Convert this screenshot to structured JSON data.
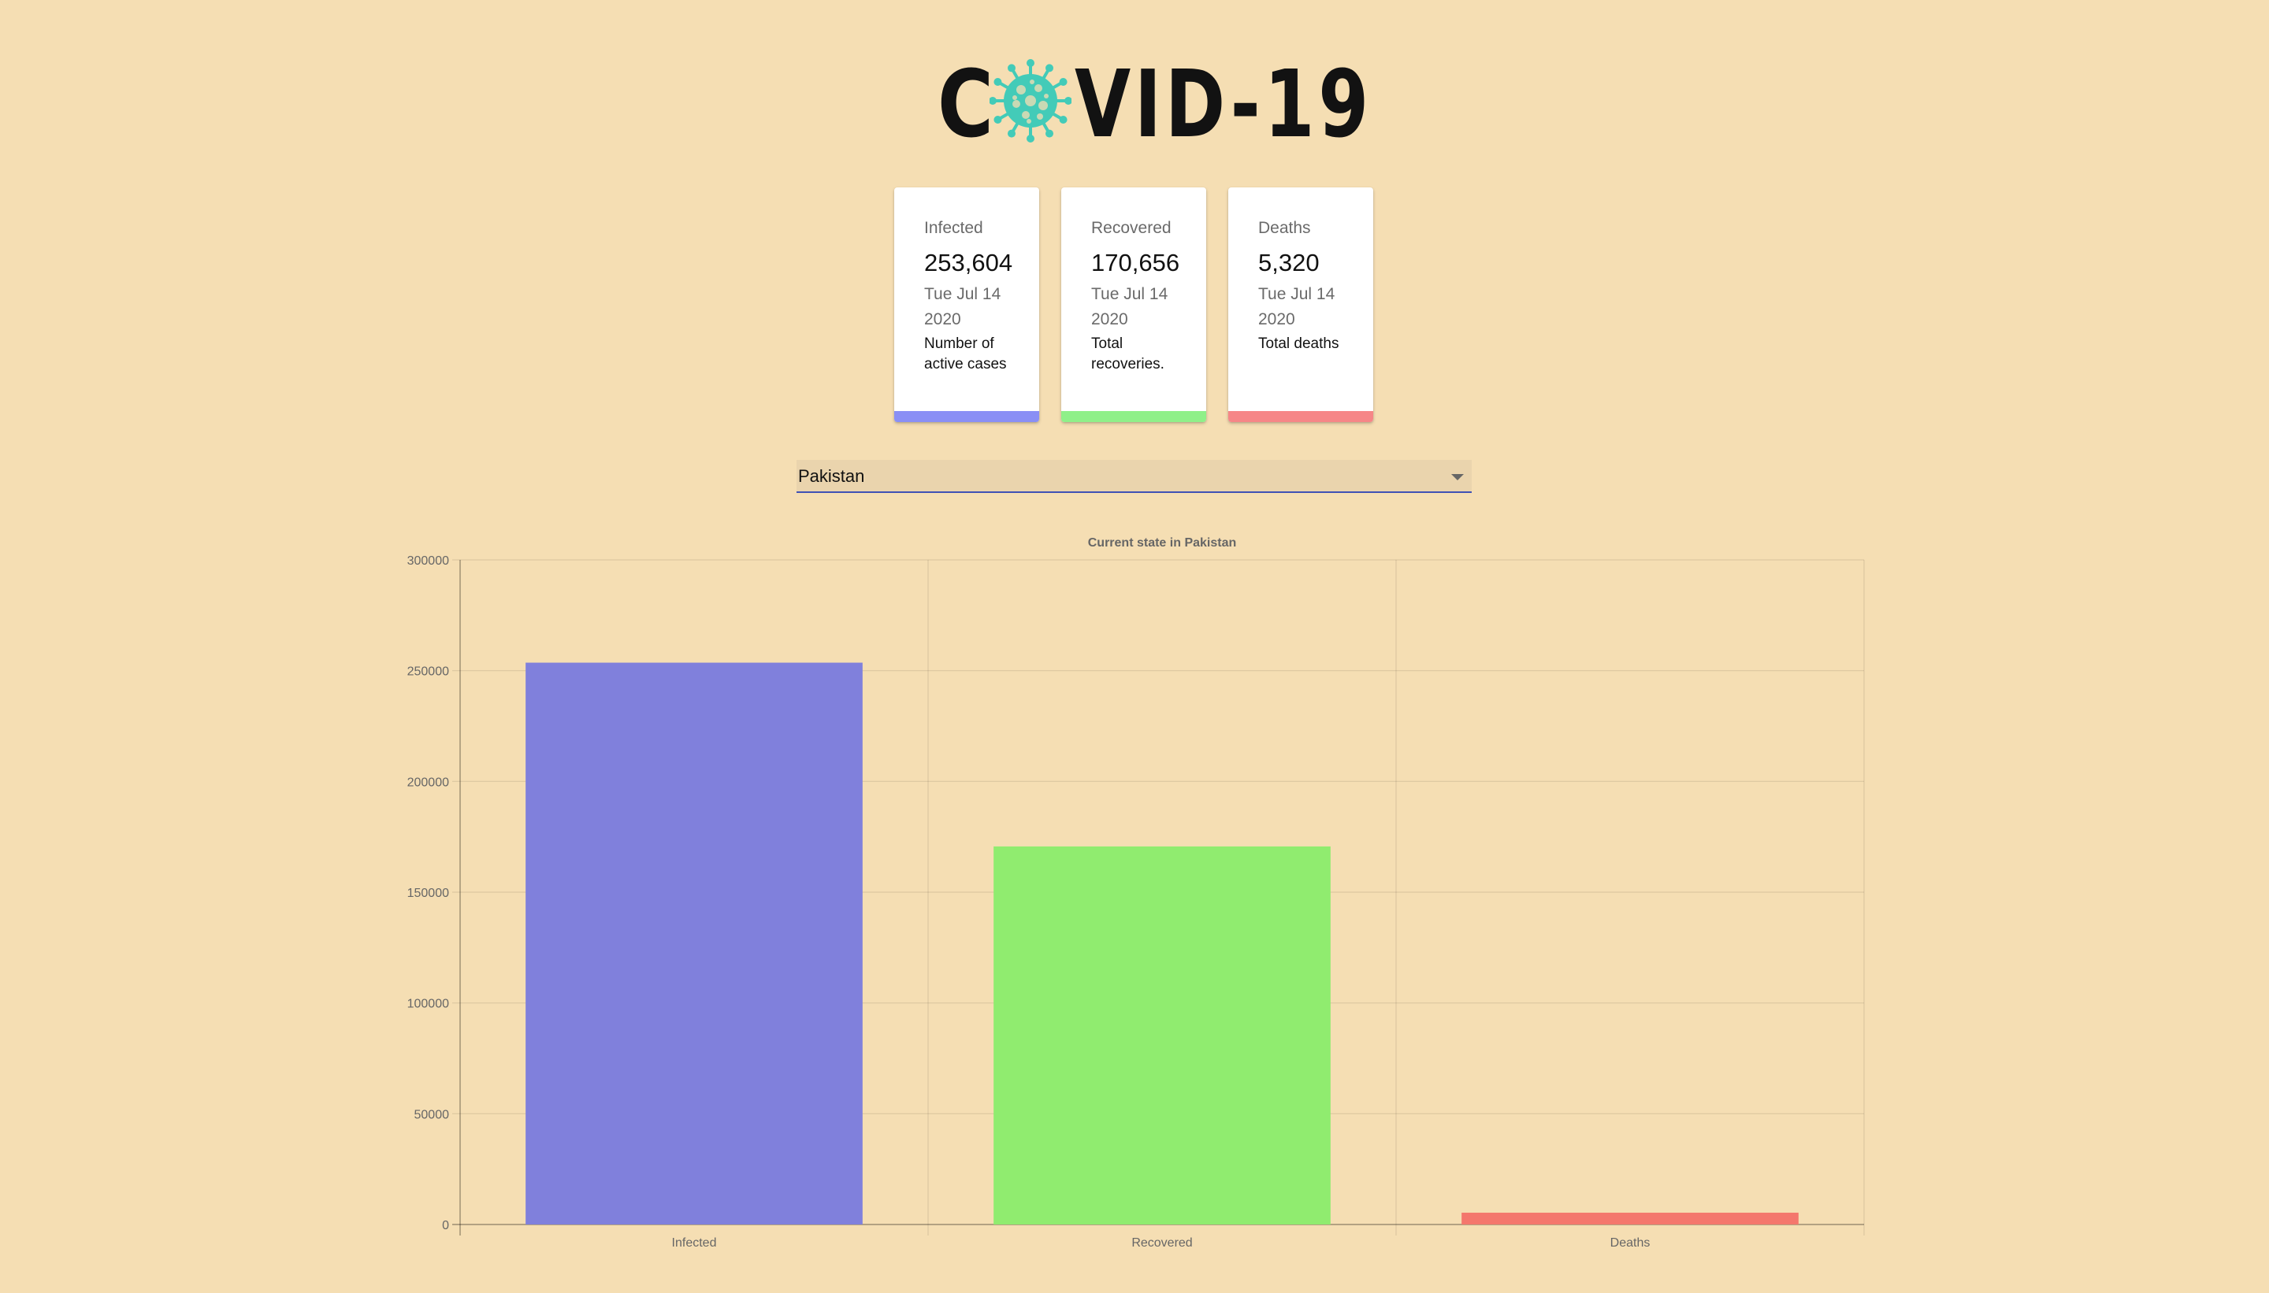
{
  "logo": {
    "prefix": "C",
    "suffix": "VID-19",
    "icon": "virus-icon",
    "virus_color": "#43cbb8"
  },
  "cards": [
    {
      "title": "Infected",
      "count": "253,604",
      "date": "Tue Jul 14 2020",
      "description": "Number of active cases",
      "color": "#8a8ff5"
    },
    {
      "title": "Recovered",
      "count": "170,656",
      "date": "Tue Jul 14 2020",
      "description": "Total recoveries.",
      "color": "#8ff089"
    },
    {
      "title": "Deaths",
      "count": "5,320",
      "date": "Tue Jul 14 2020",
      "description": "Total deaths",
      "color": "#f68687"
    }
  ],
  "country_select": {
    "selected": "Pakistan",
    "icon": "dropdown-arrow-icon"
  },
  "chart_data": {
    "type": "bar",
    "title": "Current state in Pakistan",
    "categories": [
      "Infected",
      "Recovered",
      "Deaths"
    ],
    "values": [
      253604,
      170656,
      5320
    ],
    "colors": [
      "#8080dc",
      "#90ec6f",
      "#f4776d"
    ],
    "ylim": [
      0,
      300000
    ],
    "yticks": [
      0,
      50000,
      100000,
      150000,
      200000,
      250000,
      300000
    ],
    "grid": true,
    "legend": "none"
  }
}
